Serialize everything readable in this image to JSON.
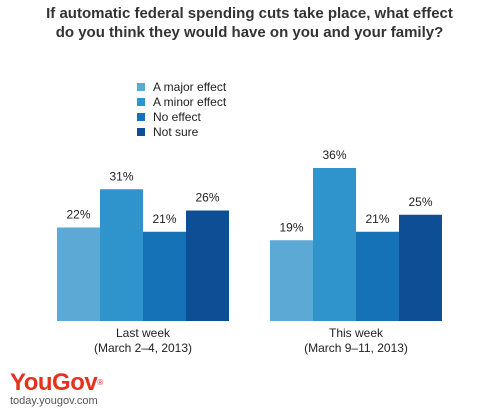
{
  "chart_data": {
    "type": "bar",
    "title_lines": [
      "If automatic federal spending cuts take place, what effect",
      "do you think they would have on you and your family?"
    ],
    "categories": [
      [
        "Last week",
        "(March 2–4, 2013)"
      ],
      [
        "This week",
        "(March 9–11, 2013)"
      ]
    ],
    "series": [
      {
        "name": "A major effect",
        "values": [
          22,
          19
        ],
        "labels": [
          "22%",
          "19%"
        ],
        "color": "#5da9d6"
      },
      {
        "name": "A minor effect",
        "values": [
          31,
          36
        ],
        "labels": [
          "31%",
          "36%"
        ],
        "color": "#2f94cc"
      },
      {
        "name": "No effect",
        "values": [
          21,
          21
        ],
        "labels": [
          "21%",
          "21%"
        ],
        "color": "#1572b6"
      },
      {
        "name": "Not sure",
        "values": [
          26,
          25
        ],
        "labels": [
          "26%",
          "25%"
        ],
        "color": "#0d4e94"
      }
    ],
    "ylim": [
      0,
      45
    ],
    "grid": false,
    "legend_position": "top-left"
  },
  "branding": {
    "logo_text": "YouGov",
    "logo_mark": "®",
    "url": "today.yougov.com",
    "logo_color": "#e3331f"
  }
}
